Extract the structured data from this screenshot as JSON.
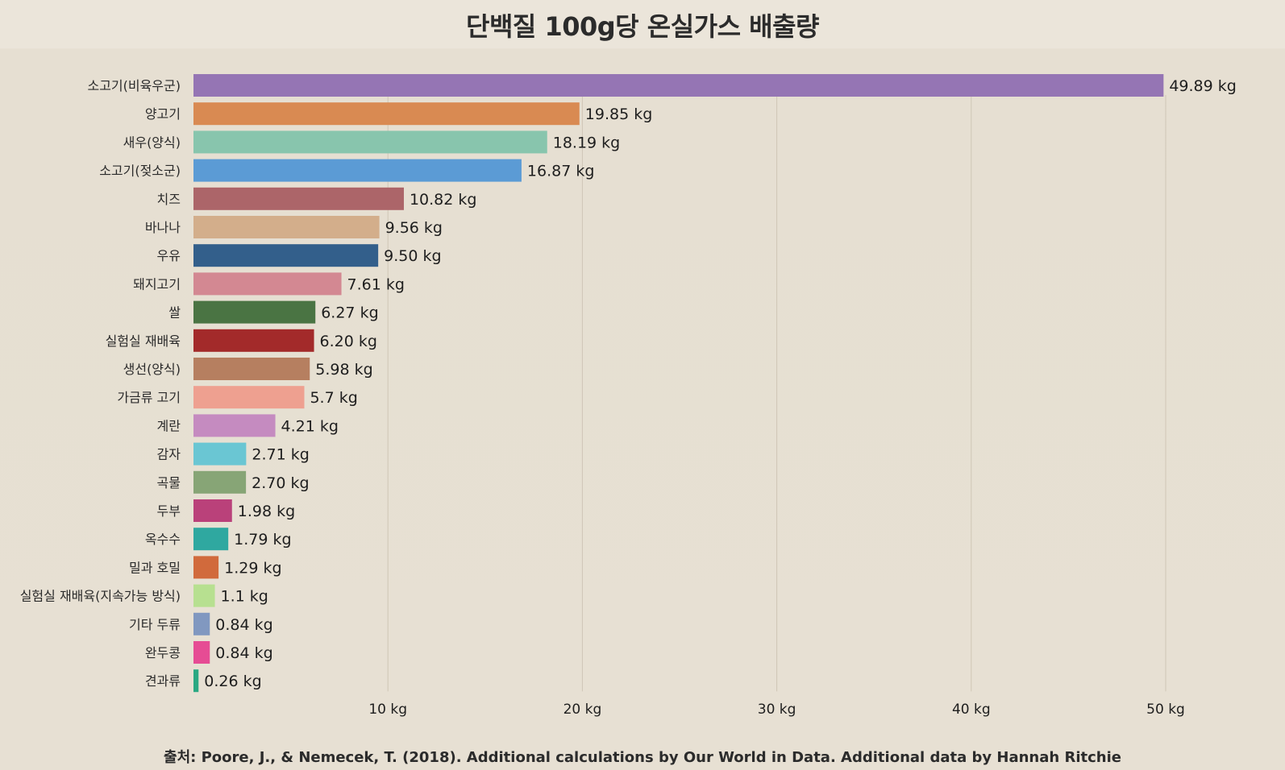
{
  "chart_data": {
    "type": "bar",
    "orientation": "horizontal",
    "title": "단백질 100g당 온실가스 배출량",
    "source": "출처: Poore, J., & Nemecek, T. (2018). Additional calculations by Our World in Data. Additional data by Hannah Ritchie",
    "categories": [
      "소고기(비육우군)",
      "양고기",
      "새우(양식)",
      "소고기(젖소군)",
      "치즈",
      "바나나",
      "우유",
      "돼지고기",
      "쌀",
      "실험실 재배육",
      "생선(양식)",
      "가금류 고기",
      "계란",
      "감자",
      "곡물",
      "두부",
      "옥수수",
      "밀과 호밀",
      "실험실 재배육(지속가능 방식)",
      "기타 두류",
      "완두콩",
      "견과류"
    ],
    "values": [
      49.89,
      19.85,
      18.19,
      16.87,
      10.82,
      9.56,
      9.5,
      7.61,
      6.27,
      6.2,
      5.98,
      5.7,
      4.21,
      2.71,
      2.7,
      1.98,
      1.79,
      1.29,
      1.1,
      0.84,
      0.84,
      0.26
    ],
    "value_labels": [
      "49.89 kg",
      "19.85 kg",
      "18.19 kg",
      "16.87 kg",
      "10.82 kg",
      "9.56 kg",
      "9.50 kg",
      "7.61 kg",
      "6.27 kg",
      "6.20 kg",
      "5.98 kg",
      "5.7 kg",
      "4.21 kg",
      "2.71 kg",
      "2.70 kg",
      "1.98 kg",
      "1.79 kg",
      "1.29 kg",
      "1.1 kg",
      "0.84 kg",
      "0.84 kg",
      "0.26 kg"
    ],
    "colors": [
      "#9575b4",
      "#d98a52",
      "#88c5ad",
      "#5b9bd5",
      "#ac6569",
      "#d3ae8b",
      "#335f8b",
      "#d38892",
      "#4a7443",
      "#a32a2a",
      "#b67f60",
      "#eea090",
      "#c58bc0",
      "#6ac6d3",
      "#87a576",
      "#ba417a",
      "#2fa8a0",
      "#d16a3c",
      "#b7e090",
      "#8198c0",
      "#e64c94",
      "#2aa882"
    ],
    "xlim": [
      0,
      50
    ],
    "xticks": [
      10,
      20,
      30,
      40,
      50
    ],
    "xtick_labels": [
      "10 kg",
      "20 kg",
      "30 kg",
      "40 kg",
      "50 kg"
    ],
    "grid": "vertical",
    "legend": "none"
  }
}
